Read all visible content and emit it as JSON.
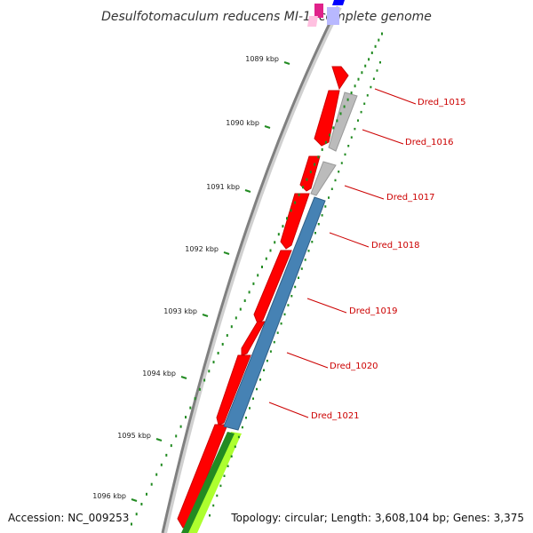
{
  "title": "Desulfotomaculum reducens MI-1, complete genome",
  "accession": "Accession: NC_009253",
  "topology": "Topology: circular; Length: 3,608,104 bp; Genes: 3,375",
  "ticks": [
    {
      "label": "1089 kbp"
    },
    {
      "label": "1090 kbp"
    },
    {
      "label": "1091 kbp"
    },
    {
      "label": "1092 kbp"
    },
    {
      "label": "1093 kbp"
    },
    {
      "label": "1094 kbp"
    },
    {
      "label": "1095 kbp"
    },
    {
      "label": "1096 kbp"
    }
  ],
  "genes": [
    {
      "label": "Dred_1015",
      "strand": "forward",
      "color": "#ff0000"
    },
    {
      "label": "Dred_1016",
      "strand": "reverse",
      "color": "#bbbbbb"
    },
    {
      "label": "Dred_1017",
      "strand": "reverse",
      "color": "#bbbbbb"
    },
    {
      "label": "Dred_1018",
      "strand": "reverse",
      "color": "#4682b4"
    },
    {
      "label": "Dred_1019",
      "strand": "reverse",
      "color": "#4682b4"
    },
    {
      "label": "Dred_1020",
      "strand": "reverse",
      "color": "#4682b4"
    },
    {
      "label": "Dred_1021",
      "strand": "reverse",
      "color": "#4682b4"
    }
  ],
  "colors": {
    "cds_forward": "#ff0000",
    "backbone": "#808080",
    "ticks": "#228b22",
    "label_lines": "#cc0000",
    "label_text": "#cc0000",
    "hypothetical": "#bbbbbb",
    "operon": "#4682b4",
    "downstream_light": "#adff2f",
    "downstream_dark": "#228b22"
  }
}
